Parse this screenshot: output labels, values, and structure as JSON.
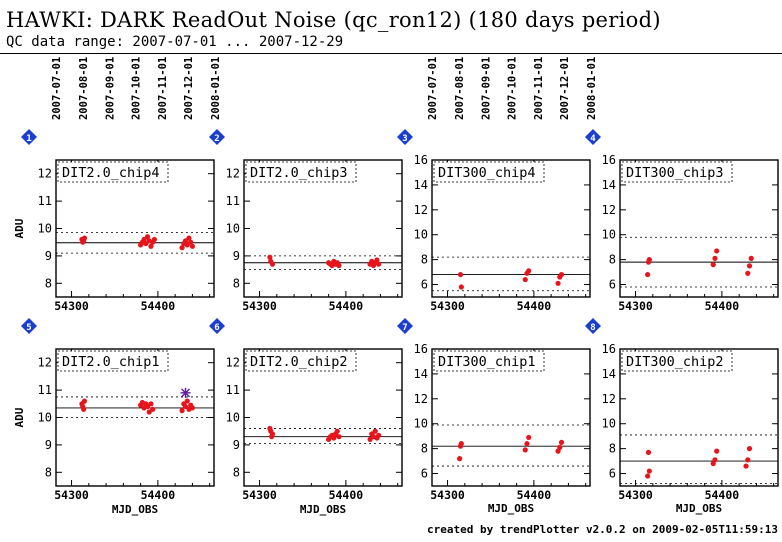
{
  "header": {
    "title": "HAWKI: DARK ReadOut Noise (qc_ron12) (180 days period)",
    "subtitle": "QC data range: 2007-07-01 ... 2007-12-29"
  },
  "footer": {
    "text": "created by trendPlotter v2.0.2 on 2009-02-05T11:59:13"
  },
  "colors": {
    "points": "#e8141c",
    "outlier": "#5a1fa0",
    "badge": "#1a3fd0",
    "axis": "#000000"
  },
  "chart_data": {
    "type": "scatter",
    "xlabel": "MJD_OBS",
    "ylabel": "ADU",
    "xlim": [
      54282,
      54465
    ],
    "x_ticks": [
      54300,
      54400
    ],
    "date_axis": {
      "labels": [
        "2007-07-01",
        "2007-08-01",
        "2007-09-01",
        "2007-10-01",
        "2007-11-01",
        "2007-12-01",
        "2008-01-01"
      ],
      "mjd": [
        54282,
        54313,
        54344,
        54374,
        54405,
        54435,
        54466
      ]
    },
    "panels": [
      {
        "badge": "1",
        "label": "DIT2.0_chip4",
        "ylim": [
          7.5,
          12.5
        ],
        "yticks": [
          8,
          9,
          10,
          11,
          12
        ],
        "median": 9.48,
        "limits": [
          9.1,
          9.85
        ],
        "points": [
          [
            54312,
            9.6
          ],
          [
            54313,
            9.5
          ],
          [
            54314,
            9.55
          ],
          [
            54315,
            9.65
          ],
          [
            54380,
            9.4
          ],
          [
            54382,
            9.5
          ],
          [
            54384,
            9.6
          ],
          [
            54386,
            9.45
          ],
          [
            54388,
            9.7
          ],
          [
            54390,
            9.55
          ],
          [
            54392,
            9.35
          ],
          [
            54394,
            9.5
          ],
          [
            54396,
            9.6
          ],
          [
            54428,
            9.3
          ],
          [
            54430,
            9.45
          ],
          [
            54432,
            9.55
          ],
          [
            54434,
            9.4
          ],
          [
            54436,
            9.65
          ],
          [
            54438,
            9.5
          ],
          [
            54440,
            9.35
          ]
        ]
      },
      {
        "badge": "2",
        "label": "DIT2.0_chip3",
        "ylim": [
          7.5,
          12.5
        ],
        "yticks": [
          8,
          9,
          10,
          11,
          12
        ],
        "median": 8.75,
        "limits": [
          8.5,
          9.0
        ],
        "points": [
          [
            54312,
            8.95
          ],
          [
            54313,
            8.8
          ],
          [
            54315,
            8.7
          ],
          [
            54380,
            8.75
          ],
          [
            54382,
            8.7
          ],
          [
            54384,
            8.65
          ],
          [
            54386,
            8.8
          ],
          [
            54388,
            8.7
          ],
          [
            54390,
            8.75
          ],
          [
            54392,
            8.65
          ],
          [
            54428,
            8.7
          ],
          [
            54430,
            8.8
          ],
          [
            54432,
            8.65
          ],
          [
            54434,
            8.75
          ],
          [
            54436,
            8.85
          ],
          [
            54438,
            8.7
          ]
        ]
      },
      {
        "badge": "3",
        "label": "DIT300_chip4",
        "ylim": [
          5,
          16
        ],
        "yticks": [
          6,
          8,
          10,
          12,
          14,
          16
        ],
        "median": 6.8,
        "limits": [
          5.5,
          8.2
        ],
        "points": [
          [
            54315,
            6.8
          ],
          [
            54316,
            5.8
          ],
          [
            54392,
            6.9
          ],
          [
            54394,
            7.1
          ],
          [
            54390,
            6.4
          ],
          [
            54428,
            6.1
          ],
          [
            54430,
            6.6
          ],
          [
            54432,
            6.8
          ]
        ]
      },
      {
        "badge": "4",
        "label": "DIT300_chip3",
        "ylim": [
          5,
          16
        ],
        "yticks": [
          6,
          8,
          10,
          12,
          14,
          16
        ],
        "median": 7.8,
        "limits": [
          5.8,
          9.8
        ],
        "points": [
          [
            54315,
            7.8
          ],
          [
            54316,
            8.0
          ],
          [
            54314,
            6.8
          ],
          [
            54390,
            7.6
          ],
          [
            54392,
            8.1
          ],
          [
            54394,
            8.7
          ],
          [
            54430,
            6.9
          ],
          [
            54432,
            7.5
          ],
          [
            54434,
            8.1
          ]
        ]
      },
      {
        "badge": "5",
        "label": "DIT2.0_chip1",
        "ylim": [
          7.5,
          12.5
        ],
        "yticks": [
          8,
          9,
          10,
          11,
          12
        ],
        "median": 10.35,
        "limits": [
          10.0,
          10.75
        ],
        "points": [
          [
            54312,
            10.5
          ],
          [
            54313,
            10.4
          ],
          [
            54314,
            10.3
          ],
          [
            54315,
            10.6
          ],
          [
            54380,
            10.45
          ],
          [
            54382,
            10.55
          ],
          [
            54384,
            10.35
          ],
          [
            54386,
            10.5
          ],
          [
            54388,
            10.4
          ],
          [
            54390,
            10.2
          ],
          [
            54392,
            10.5
          ],
          [
            54394,
            10.3
          ],
          [
            54428,
            10.25
          ],
          [
            54430,
            10.5
          ],
          [
            54432,
            10.4
          ],
          [
            54434,
            10.6
          ],
          [
            54436,
            10.3
          ],
          [
            54438,
            10.45
          ],
          [
            54440,
            10.35
          ]
        ],
        "outliers": [
          [
            54432,
            10.9
          ]
        ]
      },
      {
        "badge": "6",
        "label": "DIT2.0_chip2",
        "ylim": [
          7.5,
          12.5
        ],
        "yticks": [
          8,
          9,
          10,
          11,
          12
        ],
        "median": 9.3,
        "limits": [
          9.05,
          9.6
        ],
        "points": [
          [
            54312,
            9.6
          ],
          [
            54313,
            9.5
          ],
          [
            54314,
            9.3
          ],
          [
            54315,
            9.4
          ],
          [
            54380,
            9.2
          ],
          [
            54382,
            9.3
          ],
          [
            54384,
            9.35
          ],
          [
            54386,
            9.25
          ],
          [
            54388,
            9.4
          ],
          [
            54390,
            9.5
          ],
          [
            54392,
            9.3
          ],
          [
            54428,
            9.2
          ],
          [
            54430,
            9.4
          ],
          [
            54432,
            9.3
          ],
          [
            54434,
            9.5
          ],
          [
            54436,
            9.25
          ],
          [
            54438,
            9.35
          ]
        ]
      },
      {
        "badge": "7",
        "label": "DIT300_chip1",
        "ylim": [
          5,
          16
        ],
        "yticks": [
          6,
          8,
          10,
          12,
          14,
          16
        ],
        "median": 8.2,
        "limits": [
          6.6,
          9.9
        ],
        "points": [
          [
            54315,
            8.2
          ],
          [
            54316,
            8.4
          ],
          [
            54314,
            7.2
          ],
          [
            54390,
            7.9
          ],
          [
            54392,
            8.4
          ],
          [
            54394,
            8.9
          ],
          [
            54428,
            7.8
          ],
          [
            54430,
            8.1
          ],
          [
            54432,
            8.5
          ]
        ]
      },
      {
        "badge": "8",
        "label": "DIT300_chip2",
        "ylim": [
          5,
          16
        ],
        "yticks": [
          6,
          8,
          10,
          12,
          14,
          16
        ],
        "median": 7.0,
        "limits": [
          5.2,
          9.1
        ],
        "points": [
          [
            54315,
            7.7
          ],
          [
            54316,
            6.2
          ],
          [
            54314,
            5.8
          ],
          [
            54390,
            6.8
          ],
          [
            54392,
            7.1
          ],
          [
            54394,
            7.8
          ],
          [
            54428,
            6.6
          ],
          [
            54430,
            7.1
          ],
          [
            54432,
            8.0
          ]
        ]
      }
    ]
  }
}
